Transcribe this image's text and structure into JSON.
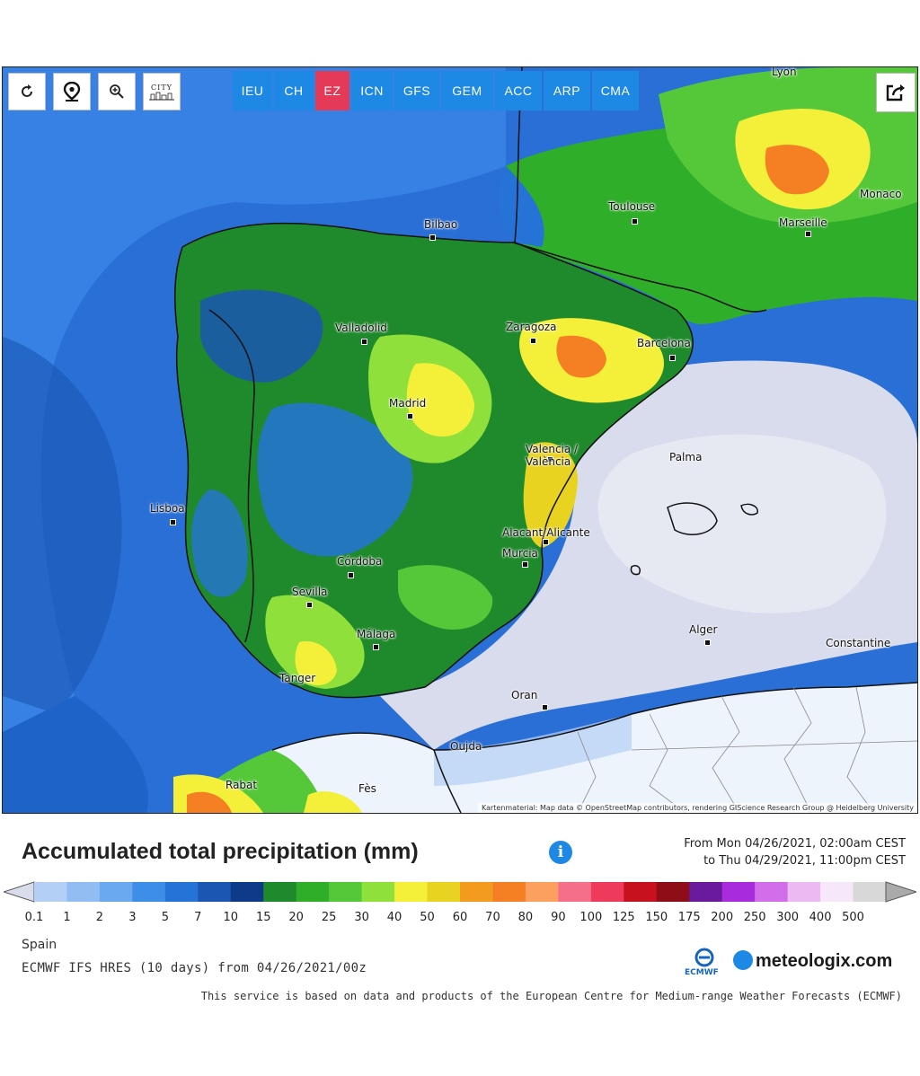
{
  "toolbar": {
    "refresh_icon": "refresh-icon",
    "location_icon": "location-pin-icon",
    "zoom_icon": "zoom-in-icon",
    "city_label": "CITY"
  },
  "models": [
    {
      "label": "IEU",
      "active": false
    },
    {
      "label": "CH",
      "active": false
    },
    {
      "label": "EZ",
      "active": true
    },
    {
      "label": "ICN",
      "active": false
    },
    {
      "label": "GFS",
      "active": false
    },
    {
      "label": "GEM",
      "active": false
    },
    {
      "label": "ACC",
      "active": false
    },
    {
      "label": "ARP",
      "active": false
    },
    {
      "label": "CMA",
      "active": false
    }
  ],
  "map": {
    "places": [
      "Bilbao",
      "Toulouse",
      "Marseille",
      "Monaco",
      "Lyon",
      "Zaragoza",
      "Barcelona",
      "Valladolid",
      "Madrid",
      "Valencia / València",
      "Palma",
      "Lisboa",
      "Alacant/Alicante",
      "Murcia",
      "Córdoba",
      "Sevilla",
      "Málaga",
      "Alger",
      "Constantine",
      "Tanger",
      "Oran",
      "Oujda",
      "Rabat",
      "Fès"
    ],
    "attribution": "Kartenmaterial: Map data © OpenStreetMap contributors, rendering GIScience Research Group @ Heidelberg University"
  },
  "legend": {
    "title": "Accumulated total precipitation (mm)",
    "period_from": "From Mon 04/26/2021, 02:00am CEST",
    "period_to": "to Thu 04/29/2021, 11:00pm CEST",
    "ticks": [
      "0.1",
      "1",
      "2",
      "3",
      "5",
      "7",
      "10",
      "15",
      "20",
      "25",
      "30",
      "40",
      "50",
      "60",
      "70",
      "80",
      "90",
      "100",
      "125",
      "150",
      "175",
      "200",
      "250",
      "300",
      "400",
      "500"
    ],
    "colors": [
      "#d9dcea",
      "#b3cff5",
      "#91bdf3",
      "#6aa8f0",
      "#3c8ee6",
      "#2573d6",
      "#1b56b3",
      "#0e3a8a",
      "#1f8a2b",
      "#2fae2a",
      "#55c83a",
      "#8fe03a",
      "#f4f03a",
      "#e8d321",
      "#f29b1f",
      "#f57f23",
      "#fba05f",
      "#f56e8a",
      "#ee3b5b",
      "#c7111f",
      "#8e0d16",
      "#6a1a9c",
      "#a82cdc",
      "#d26ee9",
      "#ecb9f3",
      "#f6e7fb",
      "#d8d8d8",
      "#aaaaaa"
    ]
  },
  "footer": {
    "region": "Spain",
    "model_info": "ECMWF IFS HRES (10 days) from 04/26/2021/00z",
    "credit": "This service is based on data and products of the European Centre for Medium-range Weather Forecasts (ECMWF)",
    "ecmwf_label": "ECMWF",
    "brand": "meteologix.com"
  }
}
